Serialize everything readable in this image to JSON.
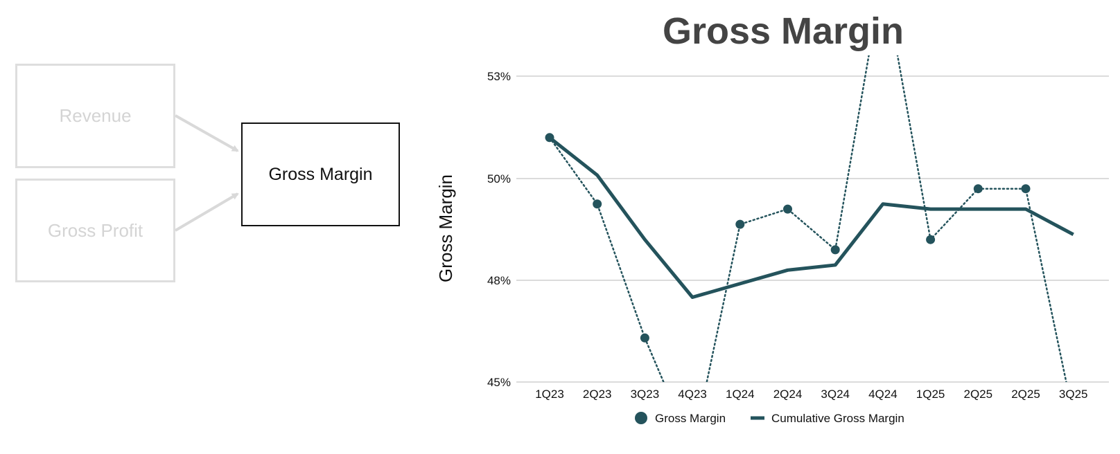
{
  "flow": {
    "boxes": [
      "Revenue",
      "Gross Profit",
      "Gross Margin"
    ],
    "active": "Gross Margin"
  },
  "colors": {
    "series": "#24535c",
    "faded_box": "#dedede",
    "grid": "#cfcfcf",
    "title": "#444444"
  },
  "chart_data": {
    "type": "line",
    "title": "Gross Margin",
    "xlabel": "",
    "ylabel": "Gross Margin",
    "categories": [
      "1Q23",
      "2Q23",
      "3Q23",
      "4Q23",
      "1Q24",
      "2Q24",
      "3Q24",
      "4Q24",
      "1Q25",
      "2Q25",
      "2Q25",
      "3Q25"
    ],
    "ylim": [
      45,
      53.5
    ],
    "yticks": [
      45,
      48,
      50,
      53
    ],
    "ytick_labels": [
      "45%",
      "48%",
      "50%",
      "53%"
    ],
    "grid": true,
    "legend_position": "bottom",
    "series": [
      {
        "name": "Gross Margin",
        "style": "dotted line with markers",
        "values": [
          51.2,
          49.5,
          46.3,
          43.0,
          49.1,
          49.4,
          48.6,
          56.0,
          48.8,
          49.8,
          49.8,
          44.0
        ]
      },
      {
        "name": "Cumulative Gross Margin",
        "style": "solid line",
        "values": [
          51.2,
          50.1,
          48.8,
          47.5,
          47.9,
          48.2,
          48.3,
          49.5,
          49.4,
          49.4,
          49.4,
          48.9
        ]
      }
    ]
  }
}
